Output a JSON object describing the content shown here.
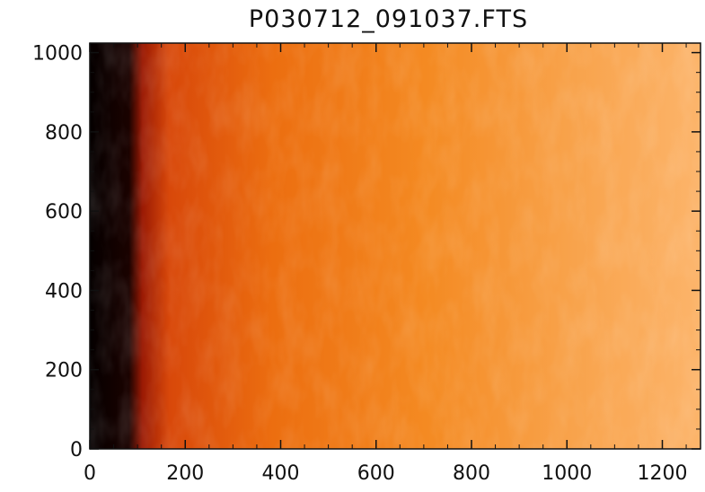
{
  "image": {
    "title": "P030712_091037.FTS",
    "subject": "solar limb image (FITS), orange colormap",
    "colors": {
      "dark_edge": "#0a0000",
      "limb_red": "#b81e06",
      "disk_mid": "#f07c14",
      "disk_bright": "#fdb870"
    }
  },
  "chart_data": {
    "type": "heatmap",
    "title": "P030712_091037.FTS",
    "xlabel": "",
    "ylabel": "",
    "xlim": [
      0,
      1280
    ],
    "ylim": [
      0,
      1024
    ],
    "x_ticks": [
      0,
      200,
      400,
      600,
      800,
      1000,
      1200
    ],
    "y_ticks": [
      0,
      200,
      400,
      600,
      800,
      1000
    ],
    "x_tick_labels": [
      "0",
      "200",
      "400",
      "600",
      "800",
      "1000",
      "1200"
    ],
    "y_tick_labels": [
      "0",
      "200",
      "400",
      "600",
      "800",
      "1000"
    ],
    "minor_ticks": true,
    "dark_region_x": [
      0,
      110
    ],
    "grid": false,
    "legend": "none"
  }
}
